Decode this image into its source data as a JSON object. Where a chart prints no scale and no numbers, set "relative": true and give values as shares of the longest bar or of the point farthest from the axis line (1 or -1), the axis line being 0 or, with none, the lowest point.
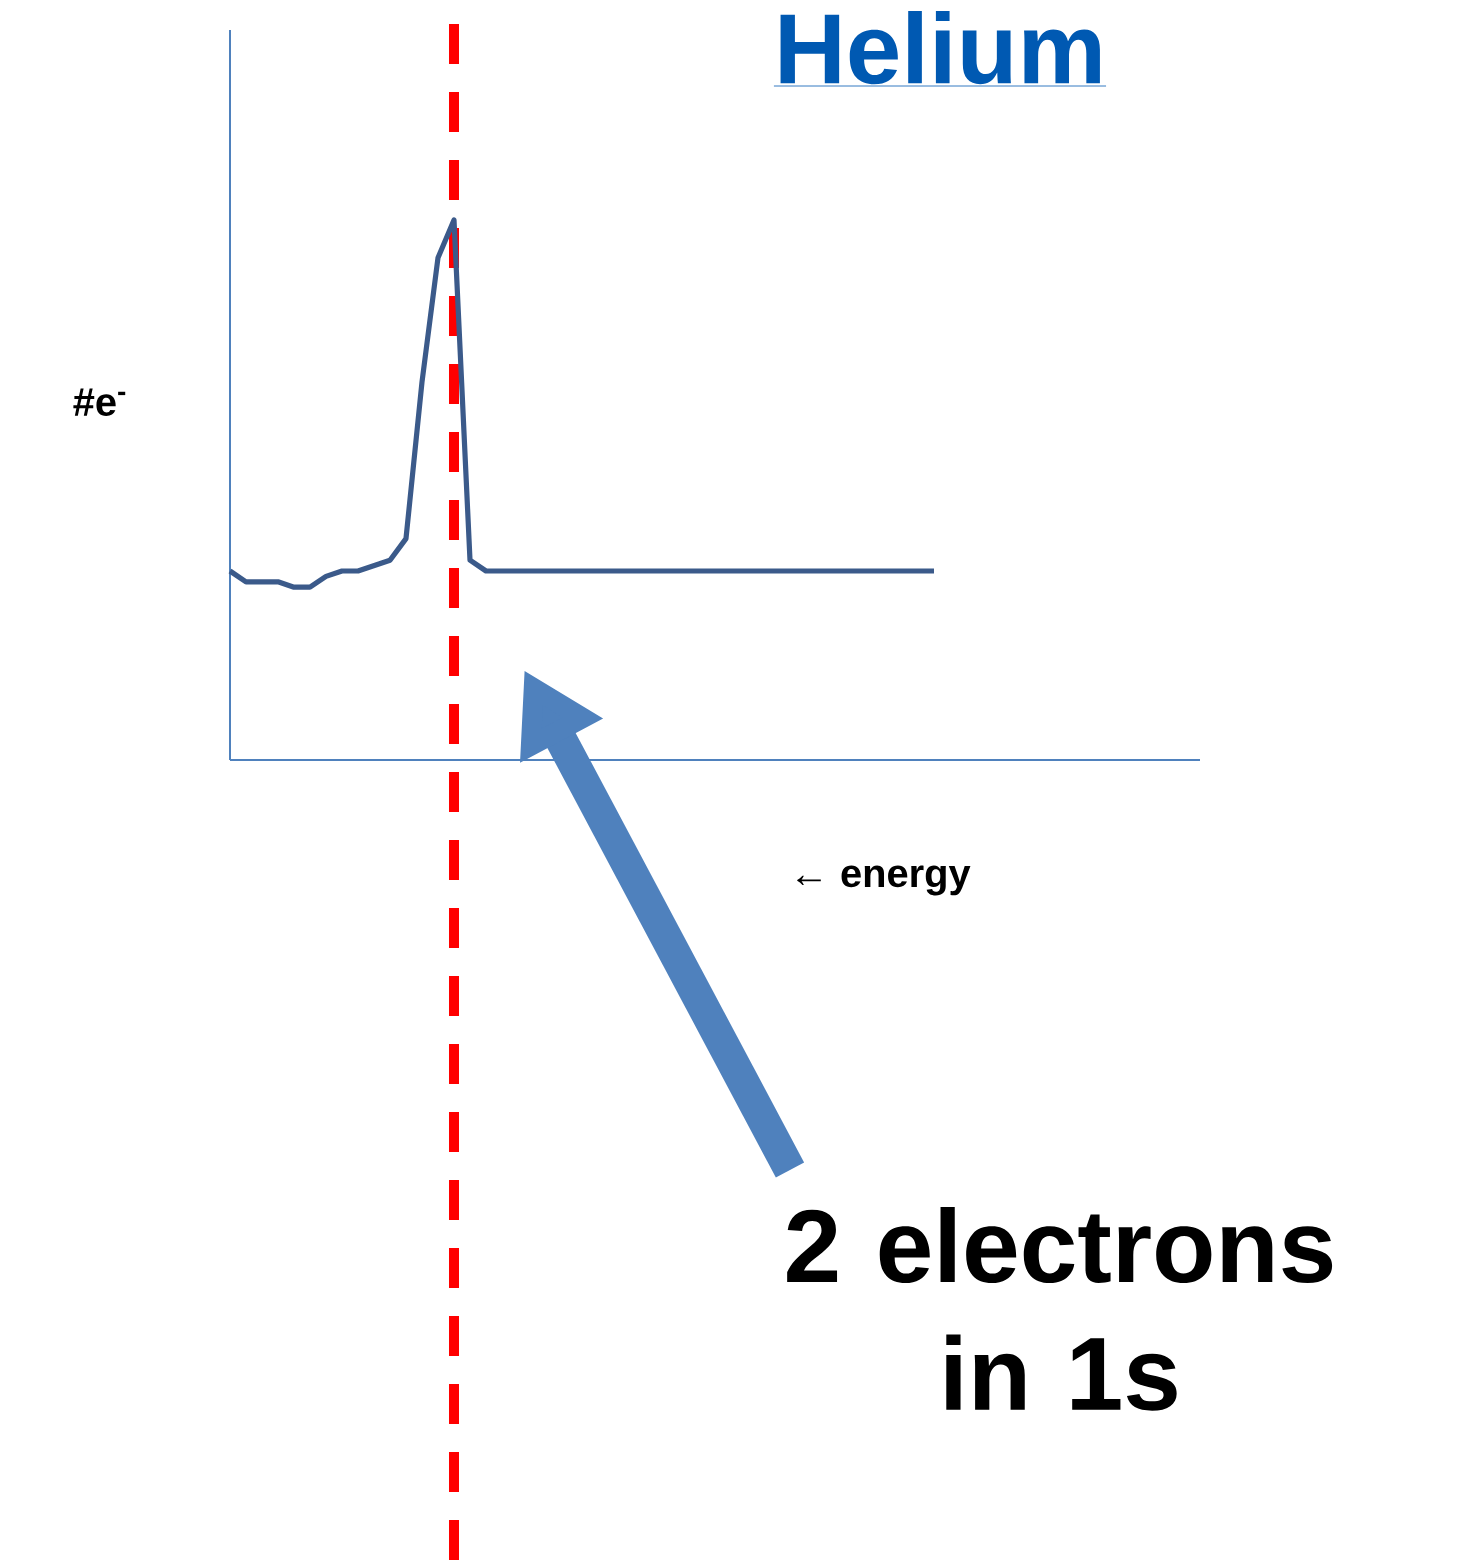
{
  "chart_data": {
    "type": "line",
    "relative": true,
    "title": "Helium",
    "xlabel": "← energy",
    "ylabel": "#e$^{-}$",
    "categories": [
      null,
      null,
      null,
      null,
      null,
      null,
      null,
      null,
      null,
      null,
      null,
      null,
      null,
      null,
      null,
      null,
      null,
      null,
      null,
      null,
      null,
      null,
      null,
      null,
      null,
      null,
      null,
      null,
      null,
      null,
      null,
      null,
      null,
      null,
      null,
      null,
      null,
      null,
      null,
      null,
      null,
      null,
      null,
      null,
      null
    ],
    "series": [
      {
        "color": "#3b5a8a",
        "values": [
          0.35,
          0.33,
          0.33,
          0.33,
          0.32,
          0.32,
          0.34,
          0.35,
          0.35,
          0.36,
          0.37,
          0.41,
          0.7,
          0.93,
          1,
          0.37,
          0.35,
          0.35,
          0.35,
          0.35,
          0.35,
          0.35,
          0.35,
          0.35,
          0.35,
          0.35,
          0.35,
          0.35,
          0.35,
          0.35,
          0.35,
          0.35,
          0.35,
          0.35,
          0.35,
          0.35,
          0.35,
          0.35,
          0.35,
          0.35,
          0.35,
          0.35,
          0.35,
          0.35,
          0.35
        ]
      }
    ],
    "annotations": [
      "2 electrons in 1s"
    ]
  }
}
